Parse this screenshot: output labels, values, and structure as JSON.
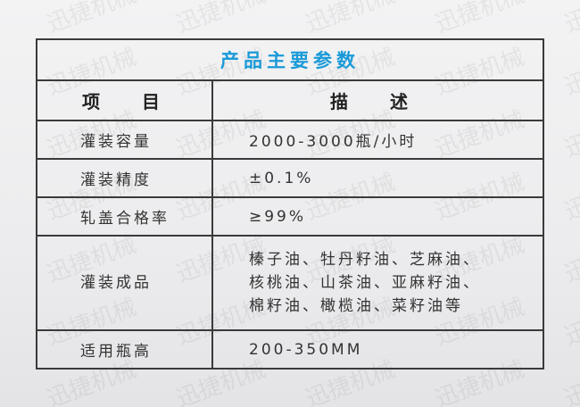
{
  "watermark": "迅捷机械",
  "title": "产品主要参数",
  "header": {
    "item": "项 目",
    "desc": "描 述"
  },
  "rows": [
    {
      "label": "灌装容量",
      "value": "2000-3000瓶/小时"
    },
    {
      "label": "灌装精度",
      "value": "±0.1%"
    },
    {
      "label": "轧盖合格率",
      "value": "≥99%"
    },
    {
      "label": "灌装成品",
      "lines": [
        "榛子油、牡丹籽油、芝麻油、",
        "核桃油、山茶油、亚麻籽油、",
        "棉籽油、橄榄油、菜籽油等"
      ]
    },
    {
      "label": "适用瓶高",
      "value": "200-350MM"
    }
  ],
  "colors": {
    "title": "#1a9ad8",
    "border": "#3a3a3a"
  }
}
